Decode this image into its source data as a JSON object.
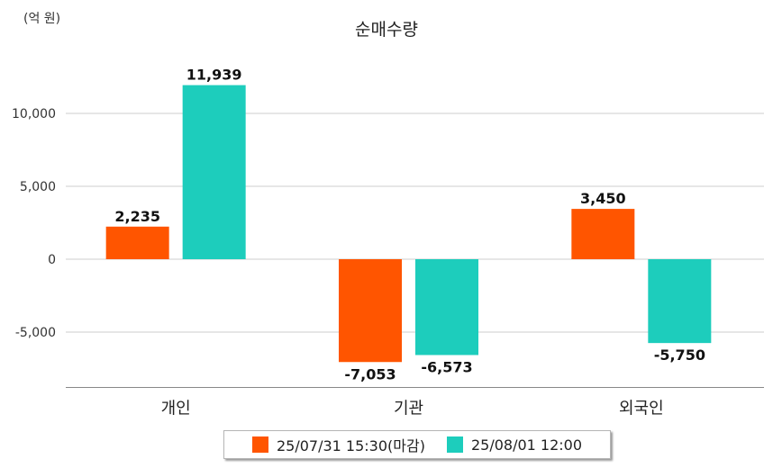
{
  "unit_label": "(억 원)",
  "chart_data": {
    "type": "bar",
    "title": "순매수량",
    "categories": [
      "개인",
      "기관",
      "외국인"
    ],
    "series": [
      {
        "name": "25/07/31 15:30(마감)",
        "color": "#ff5500",
        "values": [
          2235,
          -7053,
          3450
        ],
        "labels": [
          "2,235",
          "-7,053",
          "3,450"
        ]
      },
      {
        "name": "25/08/01 12:00",
        "color": "#1dcdbc",
        "values": [
          11939,
          -6573,
          -5750
        ],
        "labels": [
          "11,939",
          "-6,573",
          "-5,750"
        ]
      }
    ],
    "yticks": [
      10000,
      5000,
      0,
      -5000
    ],
    "ytick_labels": [
      "10,000",
      "5,000",
      "0",
      "-5,000"
    ],
    "ylim": [
      -8800,
      13400
    ],
    "grid": true,
    "legend": "bottom"
  }
}
